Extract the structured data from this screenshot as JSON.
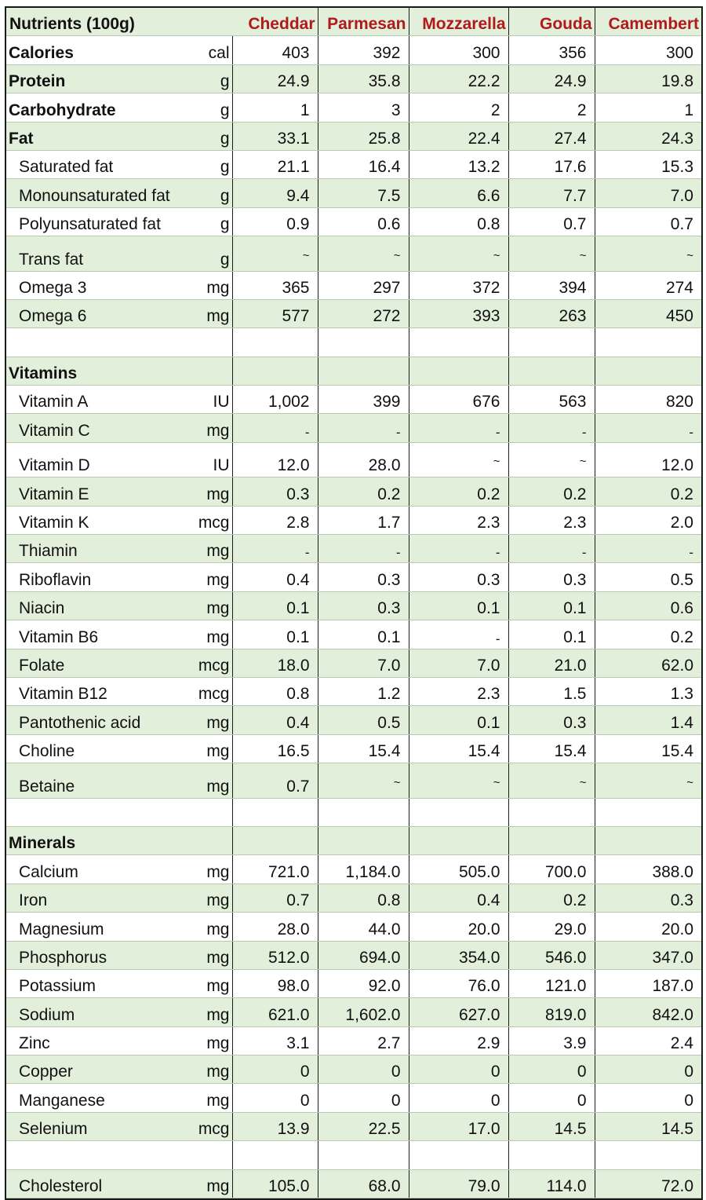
{
  "header": {
    "title": "Nutrients (100g)",
    "columns": [
      "Cheddar",
      "Parmesan",
      "Mozzarella",
      "Gouda",
      "Camembert"
    ],
    "header_color": "#b01a1a",
    "band_color": "#e2efda"
  },
  "rows": [
    {
      "name": "Calories",
      "unit": "cal",
      "style": "bold",
      "values": [
        "403",
        "392",
        "300",
        "356",
        "300"
      ]
    },
    {
      "name": "Protein",
      "unit": "g",
      "style": "bold",
      "values": [
        "24.9",
        "35.8",
        "22.2",
        "24.9",
        "19.8"
      ]
    },
    {
      "name": "Carbohydrate",
      "unit": "g",
      "style": "bold",
      "values": [
        "1",
        "3",
        "2",
        "2",
        "1"
      ]
    },
    {
      "name": "Fat",
      "unit": "g",
      "style": "bold",
      "values": [
        "33.1",
        "25.8",
        "22.4",
        "27.4",
        "24.3"
      ]
    },
    {
      "name": "Saturated fat",
      "unit": "g",
      "style": "sub",
      "values": [
        "21.1",
        "16.4",
        "13.2",
        "17.6",
        "15.3"
      ]
    },
    {
      "name": "Monounsaturated fat",
      "unit": "g",
      "style": "sub",
      "values": [
        "9.4",
        "7.5",
        "6.6",
        "7.7",
        "7.0"
      ]
    },
    {
      "name": "Polyunsaturated fat",
      "unit": "g",
      "style": "sub",
      "values": [
        "0.9",
        "0.6",
        "0.8",
        "0.7",
        "0.7"
      ]
    },
    {
      "name": "Trans fat",
      "unit": "g",
      "style": "sub",
      "values": [
        "~",
        "~",
        "~",
        "~",
        "~"
      ]
    },
    {
      "name": "Omega 3",
      "unit": "mg",
      "style": "sub",
      "values": [
        "365",
        "297",
        "372",
        "394",
        "274"
      ]
    },
    {
      "name": "Omega 6",
      "unit": "mg",
      "style": "sub",
      "values": [
        "577",
        "272",
        "393",
        "263",
        "450"
      ]
    },
    {
      "name": "",
      "unit": "",
      "style": "blank",
      "values": [
        "",
        "",
        "",
        "",
        ""
      ]
    },
    {
      "name": "Vitamins",
      "unit": "",
      "style": "section",
      "values": [
        "",
        "",
        "",
        "",
        ""
      ]
    },
    {
      "name": "Vitamin A",
      "unit": "IU",
      "style": "sub",
      "values": [
        "1,002",
        "399",
        "676",
        "563",
        "820"
      ]
    },
    {
      "name": "Vitamin C",
      "unit": "mg",
      "style": "sub",
      "values": [
        "-",
        "-",
        "-",
        "-",
        "-"
      ]
    },
    {
      "name": "Vitamin D",
      "unit": "IU",
      "style": "sub",
      "values": [
        "12.0",
        "28.0",
        "~",
        "~",
        "12.0"
      ]
    },
    {
      "name": "Vitamin E",
      "unit": "mg",
      "style": "sub",
      "values": [
        "0.3",
        "0.2",
        "0.2",
        "0.2",
        "0.2"
      ]
    },
    {
      "name": "Vitamin K",
      "unit": "mcg",
      "style": "sub",
      "values": [
        "2.8",
        "1.7",
        "2.3",
        "2.3",
        "2.0"
      ]
    },
    {
      "name": "Thiamin",
      "unit": "mg",
      "style": "sub",
      "values": [
        "-",
        "-",
        "-",
        "-",
        "-"
      ]
    },
    {
      "name": "Riboflavin",
      "unit": "mg",
      "style": "sub",
      "values": [
        "0.4",
        "0.3",
        "0.3",
        "0.3",
        "0.5"
      ]
    },
    {
      "name": "Niacin",
      "unit": "mg",
      "style": "sub",
      "values": [
        "0.1",
        "0.3",
        "0.1",
        "0.1",
        "0.6"
      ]
    },
    {
      "name": "Vitamin B6",
      "unit": "mg",
      "style": "sub",
      "values": [
        "0.1",
        "0.1",
        "-",
        "0.1",
        "0.2"
      ]
    },
    {
      "name": "Folate",
      "unit": "mcg",
      "style": "sub",
      "values": [
        "18.0",
        "7.0",
        "7.0",
        "21.0",
        "62.0"
      ]
    },
    {
      "name": "Vitamin B12",
      "unit": "mcg",
      "style": "sub",
      "values": [
        "0.8",
        "1.2",
        "2.3",
        "1.5",
        "1.3"
      ]
    },
    {
      "name": "Pantothenic acid",
      "unit": "mg",
      "style": "sub",
      "values": [
        "0.4",
        "0.5",
        "0.1",
        "0.3",
        "1.4"
      ]
    },
    {
      "name": "Choline",
      "unit": "mg",
      "style": "sub",
      "values": [
        "16.5",
        "15.4",
        "15.4",
        "15.4",
        "15.4"
      ]
    },
    {
      "name": "Betaine",
      "unit": "mg",
      "style": "sub",
      "values": [
        "0.7",
        "~",
        "~",
        "~",
        "~"
      ]
    },
    {
      "name": "",
      "unit": "",
      "style": "blank",
      "values": [
        "",
        "",
        "",
        "",
        ""
      ]
    },
    {
      "name": "Minerals",
      "unit": "",
      "style": "section",
      "values": [
        "",
        "",
        "",
        "",
        ""
      ]
    },
    {
      "name": "Calcium",
      "unit": "mg",
      "style": "sub",
      "values": [
        "721.0",
        "1,184.0",
        "505.0",
        "700.0",
        "388.0"
      ]
    },
    {
      "name": "Iron",
      "unit": "mg",
      "style": "sub",
      "values": [
        "0.7",
        "0.8",
        "0.4",
        "0.2",
        "0.3"
      ]
    },
    {
      "name": "Magnesium",
      "unit": "mg",
      "style": "sub",
      "values": [
        "28.0",
        "44.0",
        "20.0",
        "29.0",
        "20.0"
      ]
    },
    {
      "name": "Phosphorus",
      "unit": "mg",
      "style": "sub",
      "values": [
        "512.0",
        "694.0",
        "354.0",
        "546.0",
        "347.0"
      ]
    },
    {
      "name": "Potassium",
      "unit": "mg",
      "style": "sub",
      "values": [
        "98.0",
        "92.0",
        "76.0",
        "121.0",
        "187.0"
      ]
    },
    {
      "name": "Sodium",
      "unit": "mg",
      "style": "sub",
      "values": [
        "621.0",
        "1,602.0",
        "627.0",
        "819.0",
        "842.0"
      ]
    },
    {
      "name": "Zinc",
      "unit": "mg",
      "style": "sub",
      "values": [
        "3.1",
        "2.7",
        "2.9",
        "3.9",
        "2.4"
      ]
    },
    {
      "name": "Copper",
      "unit": "mg",
      "style": "sub",
      "values": [
        "0",
        "0",
        "0",
        "0",
        "0"
      ]
    },
    {
      "name": "Manganese",
      "unit": "mg",
      "style": "sub",
      "values": [
        "0",
        "0",
        "0",
        "0",
        "0"
      ]
    },
    {
      "name": "Selenium",
      "unit": "mcg",
      "style": "sub",
      "values": [
        "13.9",
        "22.5",
        "17.0",
        "14.5",
        "14.5"
      ]
    },
    {
      "name": "",
      "unit": "",
      "style": "blank",
      "values": [
        "",
        "",
        "",
        "",
        ""
      ]
    },
    {
      "name": "Cholesterol",
      "unit": "mg",
      "style": "sub",
      "values": [
        "105.0",
        "68.0",
        "79.0",
        "114.0",
        "72.0"
      ]
    }
  ]
}
